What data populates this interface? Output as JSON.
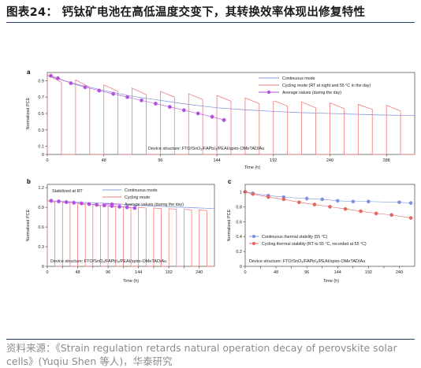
{
  "figure_title": "图表24：  钙钛矿电池在高低温度交变下，其转换效率体现出修复特性",
  "source_line1": "资料来源：《Strain regulation retards natural operation decay of perovskite solar",
  "source_line2": "cells》(Yuqiu Shen 等人)，华泰研究",
  "colors": {
    "continuous": "#8a9ddb",
    "cycling": "#ef7c7c",
    "average": "#b34fe0",
    "thermal_blue": "#7b93e0",
    "thermal_red": "#e5655f"
  },
  "chart_data": [
    {
      "panel": "a",
      "type": "line",
      "xlabel": "Time (h)",
      "ylabel": "Normalized PCE",
      "xlim": [
        0,
        312
      ],
      "ylim": [
        0,
        1.0
      ],
      "xticks": [
        0,
        48,
        96,
        144,
        192,
        240,
        288
      ],
      "yticks": [
        0,
        0.1,
        0.3,
        0.5,
        0.7,
        0.9
      ],
      "legend_position": "top-right",
      "annotation": "Device structure: FTO/SnO₂/FAPbI₃/PEAI/spiro-OMeTAD/Au",
      "series": [
        {
          "name": "Continuous mode",
          "kind": "continuous",
          "x": [
            0,
            24,
            48,
            72,
            96,
            120,
            144,
            168,
            192,
            216,
            240,
            264,
            288,
            312
          ],
          "y": [
            0.96,
            0.86,
            0.78,
            0.71,
            0.66,
            0.61,
            0.57,
            0.545,
            0.525,
            0.51,
            0.5,
            0.49,
            0.48,
            0.475
          ]
        },
        {
          "name": "Cycling mode (RT at night and 55 °C in the day)",
          "kind": "cycling",
          "cycle_starts": [
            0,
            24,
            48,
            72,
            96,
            120,
            144,
            168,
            192,
            216,
            240,
            264,
            288
          ],
          "cycle_on_hours": 12,
          "cycle_top_start": [
            0.97,
            0.91,
            0.85,
            0.81,
            0.77,
            0.74,
            0.72,
            0.69,
            0.66,
            0.64,
            0.63,
            0.61,
            0.6
          ],
          "cycle_top_end": [
            0.88,
            0.82,
            0.77,
            0.73,
            0.7,
            0.67,
            0.65,
            0.62,
            0.59,
            0.57,
            0.56,
            0.55,
            0.53
          ]
        },
        {
          "name": "Average values (during the day)",
          "kind": "average",
          "x": [
            3,
            9,
            20,
            32,
            44,
            56,
            68,
            80,
            92,
            104,
            116,
            128,
            140,
            150
          ],
          "y": [
            0.96,
            0.93,
            0.87,
            0.82,
            0.78,
            0.74,
            0.7,
            0.66,
            0.62,
            0.58,
            0.54,
            0.5,
            0.46,
            0.42
          ]
        }
      ]
    },
    {
      "panel": "b",
      "type": "line",
      "xlabel": "Time (h)",
      "ylabel": "Normalized PCE",
      "xlim": [
        0,
        264
      ],
      "ylim": [
        0,
        1.25
      ],
      "xticks": [
        0,
        24,
        48,
        72,
        96,
        120,
        144,
        168,
        192,
        216,
        240
      ],
      "xticklabels": [
        "0",
        "",
        "48",
        "",
        "96",
        "",
        "144",
        "",
        "192",
        "",
        "240"
      ],
      "yticks": [
        0,
        0.3,
        0.6,
        0.9,
        1.2
      ],
      "legend_position": "top-right",
      "annotation_top": "Stabilized at RT",
      "annotation": "Device structure: FTO/SnO₂/FAPbI₃/PEAI/spiro-OMeTAD/Au",
      "series": [
        {
          "name": "Continuous mode",
          "kind": "continuous",
          "x": [
            0,
            48,
            96,
            144,
            192,
            240,
            264
          ],
          "y": [
            1.0,
            0.98,
            0.96,
            0.93,
            0.91,
            0.89,
            0.88
          ]
        },
        {
          "name": "Cycling mode",
          "kind": "cycling",
          "cycle_starts": [
            0,
            24,
            48,
            72,
            96,
            120,
            144,
            168,
            192,
            216,
            240
          ],
          "cycle_on_hours": 12,
          "cycle_top_start": [
            1.0,
            0.98,
            0.96,
            0.94,
            0.92,
            0.91,
            0.9,
            0.89,
            0.88,
            0.87,
            0.86
          ],
          "cycle_top_end": [
            0.98,
            0.96,
            0.94,
            0.92,
            0.91,
            0.9,
            0.89,
            0.88,
            0.87,
            0.86,
            0.85
          ]
        },
        {
          "name": "Average values (during the day)",
          "kind": "average",
          "x": [
            6,
            18,
            30,
            42,
            54,
            66,
            78,
            90,
            102,
            114,
            126,
            138
          ],
          "y": [
            1.0,
            0.99,
            0.98,
            0.97,
            0.96,
            0.95,
            0.94,
            0.93,
            0.92,
            0.91,
            0.9,
            0.89
          ]
        }
      ]
    },
    {
      "panel": "c",
      "type": "line",
      "xlabel": "Time (h)",
      "ylabel": "Normalized PCE",
      "xlim": [
        0,
        264
      ],
      "ylim": [
        0,
        1.1
      ],
      "xticks": [
        0,
        24,
        48,
        72,
        96,
        120,
        144,
        168,
        192,
        216,
        240
      ],
      "xticklabels": [
        "0",
        "",
        "48",
        "",
        "96",
        "",
        "144",
        "",
        "192",
        "",
        "240"
      ],
      "yticks": [
        0,
        0.2,
        0.4,
        0.6,
        0.8,
        1.0
      ],
      "legend_position": "bottom-left",
      "annotation": "Device structure: FTO/SnO₂/FAPbI₃/PEAI/spiro-OMeTAD/Au",
      "series": [
        {
          "name": "Continuous thermal stability (55 °C)",
          "kind": "thermal_blue",
          "x": [
            0,
            12,
            36,
            60,
            96,
            120,
            144,
            168,
            192,
            240,
            258
          ],
          "y": [
            1.0,
            0.98,
            0.95,
            0.93,
            0.91,
            0.9,
            0.88,
            0.87,
            0.87,
            0.86,
            0.85
          ]
        },
        {
          "name": "Cycling thermal stability (RT to 55 °C, recorded at 55 °C)",
          "kind": "thermal_red",
          "x": [
            0,
            12,
            36,
            60,
            84,
            108,
            132,
            156,
            180,
            204,
            228,
            258
          ],
          "y": [
            1.0,
            0.97,
            0.93,
            0.9,
            0.86,
            0.83,
            0.8,
            0.77,
            0.74,
            0.71,
            0.69,
            0.65
          ]
        }
      ]
    }
  ]
}
